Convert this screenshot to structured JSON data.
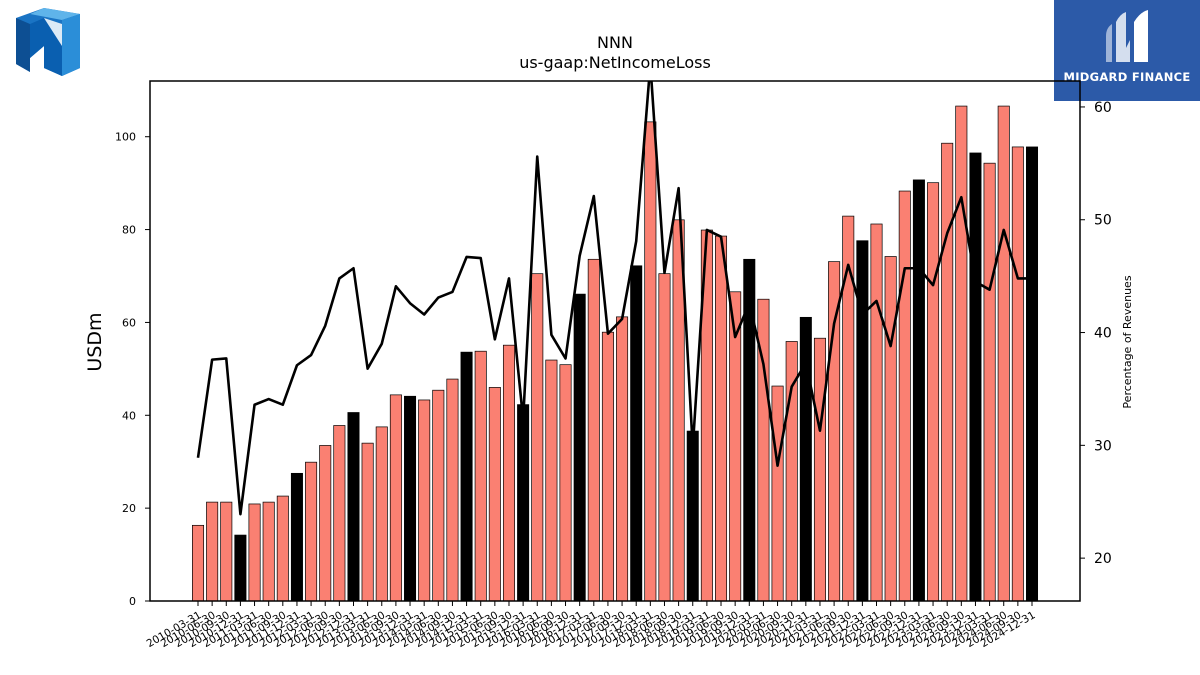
{
  "branding": {
    "corner_brand_text": "MIDGARD FINANCE",
    "corner_logo": "midgard-m-logo",
    "top_left_logo": "nnn-logo",
    "brand_color": "#2c5aa8"
  },
  "chart_data": {
    "type": "bar",
    "title": "NNN",
    "subtitle": "us-gaap:NetIncomeLoss",
    "ylabel": "USDm",
    "y2label": "Percentage of Revenues",
    "ylim": [
      0,
      112
    ],
    "y2lim": [
      16.2,
      62.3
    ],
    "yticks": [
      0,
      20,
      40,
      60,
      80,
      100
    ],
    "y2ticks": [
      20,
      30,
      40,
      50,
      60
    ],
    "bar_colors": {
      "quarter": "#fa8072",
      "annual": "#000000"
    },
    "categories": [
      "2010-03-31",
      "2010-06-30",
      "2010-09-30",
      "2010-12-31",
      "2011-03-31",
      "2011-06-30",
      "2011-09-30",
      "2011-12-31",
      "2012-03-31",
      "2012-06-30",
      "2012-09-30",
      "2012-12-31",
      "2013-03-31",
      "2013-06-30",
      "2013-09-30",
      "2013-12-31",
      "2014-03-31",
      "2014-06-30",
      "2014-09-30",
      "2014-12-31",
      "2015-03-31",
      "2015-06-30",
      "2015-09-30",
      "2015-12-31",
      "2016-03-31",
      "2016-06-30",
      "2016-09-30",
      "2016-12-31",
      "2017-03-31",
      "2017-06-30",
      "2017-09-30",
      "2017-12-31",
      "2018-03-31",
      "2018-06-30",
      "2018-09-30",
      "2018-12-31",
      "2019-03-31",
      "2019-06-30",
      "2019-09-30",
      "2019-12-31",
      "2020-03-31",
      "2020-06-30",
      "2020-09-30",
      "2020-12-31",
      "2021-03-31",
      "2021-06-30",
      "2021-09-30",
      "2021-12-31",
      "2022-03-31",
      "2022-06-30",
      "2022-09-30",
      "2022-12-31",
      "2023-03-31",
      "2023-06-30",
      "2023-09-30",
      "2023-12-31",
      "2024-03-31",
      "2024-06-30",
      "2024-09-30",
      "2024-12-31"
    ],
    "tick_labels": [
      "2010-03-31",
      "2010-06-30",
      "2010-09-30",
      "2010-12-31",
      "2011-03-31",
      "2011-06-30",
      "2011-09-30",
      "2011-12-31",
      "2012-03-31",
      "2012-06-30",
      "2012-09-30",
      "2012-12-31",
      "2013-03-31",
      "2013-06-30",
      "2013-09-30",
      "2013-12-31",
      "2014-03-31",
      "2014-06-30",
      "2014-09-30",
      "2014-12-31",
      "2015-03-31",
      "2015-06-30",
      "2015-09-30",
      "2015-12-31",
      "2016-03-31",
      "2016-06-30",
      "2016-09-30",
      "2016-12-31",
      "2017-03-31",
      "2017-06-30",
      "2017-09-30",
      "2017-12-31",
      "2018-03-31",
      "2018-06-30",
      "2018-09-30",
      "2018-12-31",
      "2019-03-31",
      "2019-06-30",
      "2019-09-30",
      "2019-12-31",
      "2020-03-31",
      "2020-06-30",
      "2020-09-30",
      "2020-12-31",
      "2021-03-31",
      "2021-06-30",
      "2021-09-30",
      "2021-12-31",
      "2022-03-31",
      "2022-06-30",
      "2022-09-30",
      "2022-12-31",
      "2023-03-31",
      "2023-06-30",
      "2023-09-30",
      "2023-12-31",
      "2024-03-31",
      "2024-06-30",
      "2024-09-30",
      "2024-12-31"
    ],
    "series": [
      {
        "kind": "bar",
        "axis": "left",
        "values": [
          16.3,
          21.3,
          21.3,
          14.2,
          20.9,
          21.3,
          22.6,
          27.5,
          29.9,
          33.5,
          37.8,
          40.6,
          34.0,
          37.5,
          44.4,
          44.1,
          43.3,
          45.4,
          47.8,
          53.6,
          53.8,
          46.0,
          55.1,
          42.3,
          70.5,
          51.9,
          50.9,
          66.1,
          73.6,
          57.9,
          61.2,
          72.2,
          103.2,
          70.5,
          82.1,
          36.6,
          79.9,
          78.6,
          66.6,
          73.6,
          65.0,
          46.3,
          55.9,
          61.1,
          56.6,
          73.1,
          82.9,
          77.6,
          81.2,
          74.2,
          88.3,
          90.7,
          90.1,
          98.6,
          106.6,
          96.5,
          94.3,
          106.6,
          97.8,
          97.8
        ]
      },
      {
        "kind": "line",
        "axis": "right",
        "color": "#000000",
        "values": [
          28.9,
          37.6,
          37.7,
          23.9,
          33.6,
          34.1,
          33.6,
          37.1,
          38.0,
          40.6,
          44.8,
          45.7,
          36.8,
          39.0,
          44.1,
          42.6,
          41.6,
          43.1,
          43.6,
          46.7,
          46.6,
          39.4,
          44.8,
          32.3,
          55.6,
          39.8,
          37.7,
          46.8,
          52.1,
          39.9,
          41.2,
          48.1,
          63.8,
          45.3,
          52.8,
          29.8,
          49.1,
          48.5,
          39.6,
          42.6,
          37.2,
          28.2,
          35.2,
          37.3,
          31.3,
          40.8,
          46.0,
          41.6,
          42.8,
          38.8,
          45.7,
          45.7,
          44.2,
          48.8,
          52.0,
          44.5,
          43.8,
          49.1,
          44.8,
          44.8
        ]
      }
    ],
    "grid": false,
    "legend": "none"
  }
}
